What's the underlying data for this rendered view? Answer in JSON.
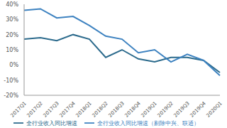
{
  "chart_data": {
    "type": "line",
    "categories": [
      "2017Q1",
      "2017Q2",
      "2017Q3",
      "2017Q4",
      "2018Q1",
      "2018Q2",
      "2018Q3",
      "2018Q4",
      "2019Q1",
      "2019Q2",
      "2019Q3",
      "2019Q4",
      "2020Q1"
    ],
    "series": [
      {
        "name": "全行业收入同比增速",
        "color": "#2b6a8c",
        "values": [
          17,
          18,
          16,
          20,
          17,
          5,
          10,
          4,
          2,
          5,
          5,
          3,
          -5
        ]
      },
      {
        "name": "全行业收入同比增速（剔除中兴、联通）",
        "color": "#3d82c0",
        "values": [
          36,
          37,
          31,
          32,
          26,
          19,
          17,
          8,
          10,
          2,
          7,
          3,
          -7
        ]
      }
    ],
    "ylim": [
      -20,
      40
    ],
    "yticks": [
      {
        "value": -20,
        "label": "-20%"
      },
      {
        "value": -10,
        "label": "-10%"
      },
      {
        "value": 0,
        "label": "0%"
      },
      {
        "value": 10,
        "label": "10%"
      },
      {
        "value": 20,
        "label": "20%"
      },
      {
        "value": 30,
        "label": "30%"
      },
      {
        "value": 40,
        "label": "40%"
      }
    ],
    "grid": false,
    "legend": "bottom"
  }
}
